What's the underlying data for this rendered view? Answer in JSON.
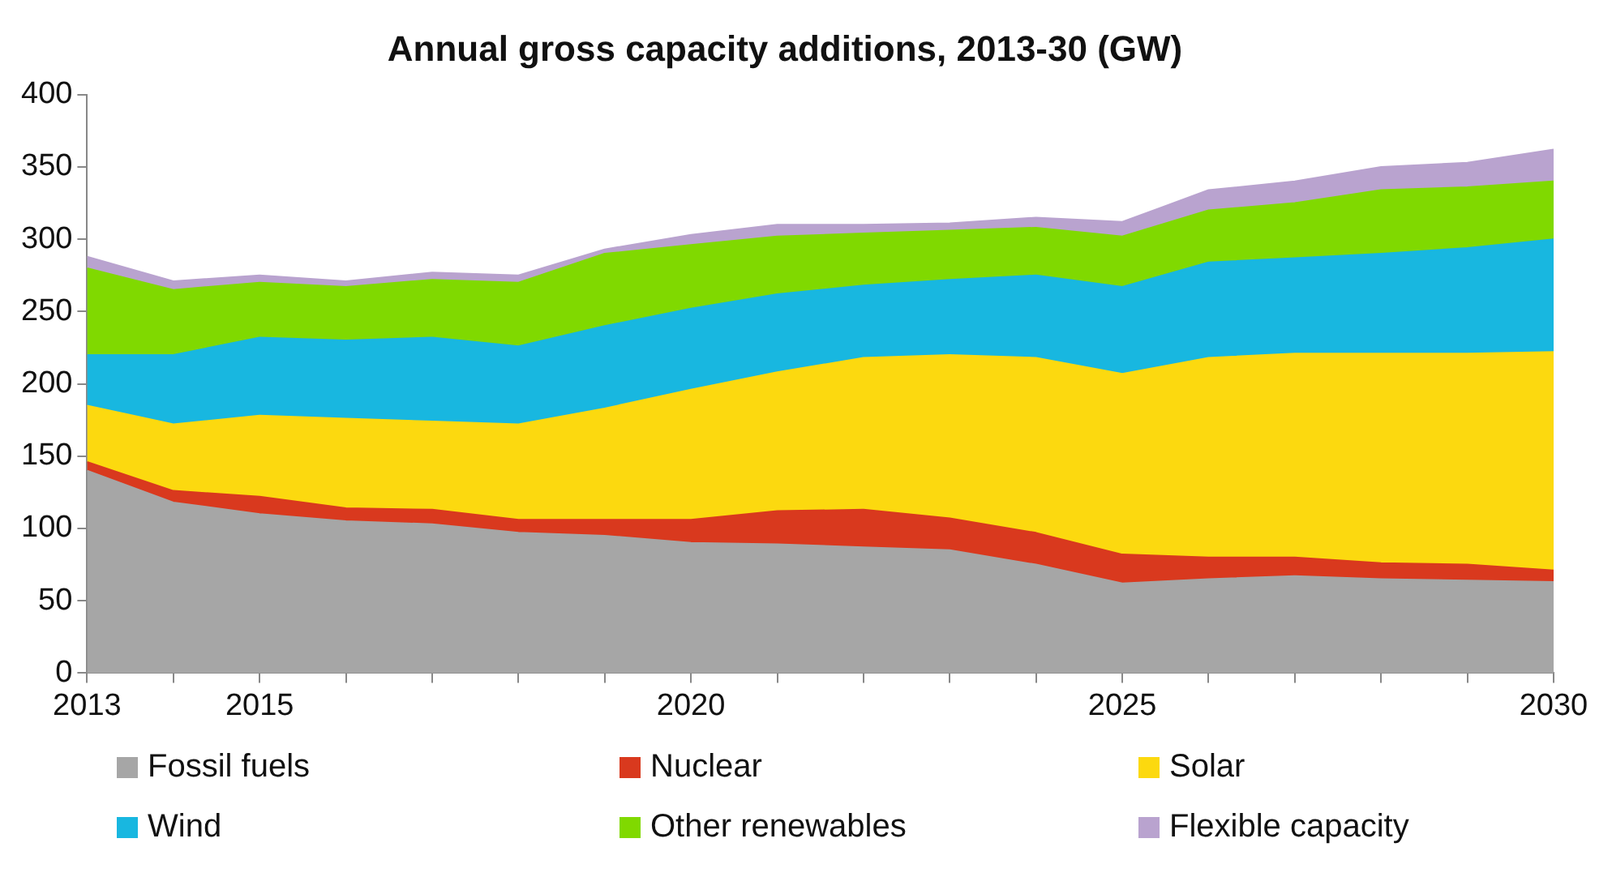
{
  "chart_data": {
    "type": "area",
    "title": "Annual gross capacity additions, 2013-30 (GW)",
    "stacked": true,
    "grid": false,
    "legend": "bottom",
    "marker": "none",
    "x": [
      2013,
      2014,
      2015,
      2016,
      2017,
      2018,
      2019,
      2020,
      2021,
      2022,
      2023,
      2024,
      2025,
      2026,
      2027,
      2028,
      2029,
      2030
    ],
    "xlim": [
      2013,
      2030
    ],
    "xticks": [
      2013,
      {
        "value": 2014,
        "label": null
      },
      2015,
      {
        "value": 2016,
        "label": null
      },
      {
        "value": 2017,
        "label": null
      },
      {
        "value": 2018,
        "label": null
      },
      {
        "value": 2019,
        "label": null
      },
      2020,
      {
        "value": 2021,
        "label": null
      },
      {
        "value": 2022,
        "label": null
      },
      {
        "value": 2023,
        "label": null
      },
      {
        "value": 2024,
        "label": null
      },
      2025,
      {
        "value": 2026,
        "label": null
      },
      {
        "value": 2027,
        "label": null
      },
      {
        "value": 2028,
        "label": null
      },
      {
        "value": 2029,
        "label": null
      },
      2030
    ],
    "ylim": [
      0,
      400
    ],
    "yticks": [
      0,
      50,
      100,
      150,
      200,
      250,
      300,
      350,
      400
    ],
    "series": [
      {
        "name": "Fossil fuels",
        "color": "#a6a6a6",
        "values": [
          140,
          118,
          110,
          105,
          103,
          97,
          95,
          90,
          89,
          87,
          85,
          75,
          62,
          65,
          67,
          65,
          64,
          63
        ]
      },
      {
        "name": "Nuclear",
        "color": "#d9391e",
        "values": [
          6,
          8,
          12,
          9,
          10,
          9,
          11,
          16,
          23,
          26,
          22,
          22,
          20,
          15,
          13,
          11,
          11,
          8
        ]
      },
      {
        "name": "Solar",
        "color": "#fcd90f",
        "values": [
          39,
          46,
          56,
          62,
          61,
          66,
          77,
          90,
          96,
          105,
          113,
          121,
          125,
          138,
          141,
          145,
          146,
          151
        ]
      },
      {
        "name": "Wind",
        "color": "#18b7e0",
        "values": [
          35,
          48,
          54,
          54,
          58,
          54,
          57,
          56,
          54,
          50,
          52,
          57,
          60,
          66,
          66,
          69,
          73,
          78
        ]
      },
      {
        "name": "Other renewables",
        "color": "#80d900",
        "values": [
          60,
          45,
          38,
          37,
          40,
          44,
          50,
          44,
          40,
          36,
          34,
          33,
          35,
          36,
          38,
          44,
          42,
          40
        ]
      },
      {
        "name": "Flexible capacity",
        "color": "#b9a3cf",
        "values": [
          8,
          6,
          5,
          4,
          5,
          5,
          3,
          7,
          8,
          6,
          5,
          7,
          10,
          14,
          15,
          16,
          17,
          22
        ]
      }
    ]
  }
}
